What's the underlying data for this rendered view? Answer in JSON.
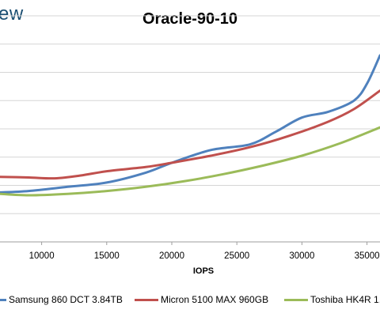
{
  "header": {
    "logo_text": "ew"
  },
  "chart_data": {
    "type": "line",
    "title": "Oracle-90-10",
    "xlabel": "IOPS",
    "ylabel": "",
    "xlim": [
      6800,
      36000
    ],
    "ylim": [
      0,
      8
    ],
    "x_ticks": [
      10000,
      15000,
      20000,
      25000,
      30000,
      35000
    ],
    "grid": true,
    "legend_position": "bottom",
    "series": [
      {
        "name": "Samsung 860 DCT 3.84TB",
        "color": "#4f81bd",
        "points": [
          [
            6800,
            1.75
          ],
          [
            9000,
            1.8
          ],
          [
            12000,
            1.95
          ],
          [
            15000,
            2.1
          ],
          [
            18000,
            2.45
          ],
          [
            20000,
            2.8
          ],
          [
            23000,
            3.25
          ],
          [
            26000,
            3.45
          ],
          [
            28000,
            3.9
          ],
          [
            30000,
            4.4
          ],
          [
            32000,
            4.6
          ],
          [
            34000,
            5.0
          ],
          [
            35000,
            5.6
          ],
          [
            36000,
            6.6
          ]
        ]
      },
      {
        "name": "Micron 5100 MAX 960GB",
        "color": "#c0504d",
        "points": [
          [
            6800,
            2.3
          ],
          [
            9000,
            2.28
          ],
          [
            11000,
            2.25
          ],
          [
            13000,
            2.35
          ],
          [
            15000,
            2.5
          ],
          [
            18000,
            2.65
          ],
          [
            20000,
            2.8
          ],
          [
            23000,
            3.05
          ],
          [
            26000,
            3.35
          ],
          [
            29000,
            3.75
          ],
          [
            32000,
            4.25
          ],
          [
            34000,
            4.7
          ],
          [
            36000,
            5.35
          ]
        ]
      },
      {
        "name": "Toshiba HK4R 1.",
        "color": "#9bbb59",
        "points": [
          [
            6800,
            1.7
          ],
          [
            9000,
            1.65
          ],
          [
            12000,
            1.7
          ],
          [
            15000,
            1.8
          ],
          [
            18000,
            1.95
          ],
          [
            21000,
            2.15
          ],
          [
            24000,
            2.4
          ],
          [
            27000,
            2.7
          ],
          [
            30000,
            3.05
          ],
          [
            33000,
            3.5
          ],
          [
            36000,
            4.05
          ]
        ]
      }
    ]
  }
}
